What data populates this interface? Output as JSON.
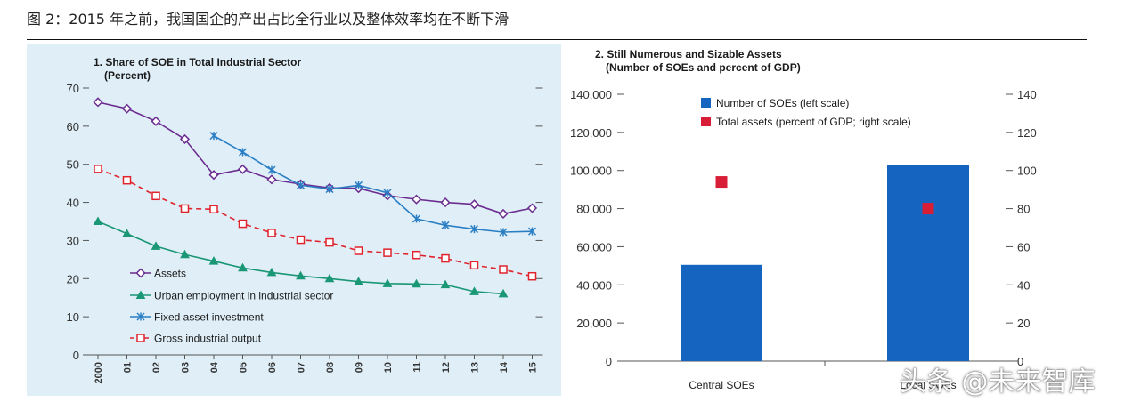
{
  "figure_title": "图 2：2015 年之前，我国国企的产出占比全行业以及整体效率均在不断下滑",
  "watermark": "头条 @未来智库",
  "chart_data": [
    {
      "type": "line",
      "title": "1. Share of SOE in Total Industrial Sector",
      "subtitle": "(Percent)",
      "ylim": [
        0,
        70
      ],
      "yticks": [
        0,
        10,
        20,
        30,
        40,
        50,
        60,
        70
      ],
      "x_labels": [
        "2000",
        "01",
        "02",
        "03",
        "04",
        "05",
        "06",
        "07",
        "08",
        "09",
        "10",
        "11",
        "12",
        "13",
        "14",
        "15"
      ],
      "series": [
        {
          "name": "Assets",
          "color": "#6b2c8f",
          "marker": "diamond",
          "dashed": false,
          "values": [
            66.3,
            64.6,
            61.3,
            56.6,
            47.2,
            48.7,
            46.0,
            44.8,
            43.8,
            43.7,
            41.8,
            40.8,
            40.0,
            39.5,
            37.0,
            38.5
          ]
        },
        {
          "name": "Urban employment in industrial sector",
          "color": "#1a9775",
          "marker": "triangle",
          "dashed": false,
          "values": [
            35.0,
            31.8,
            28.5,
            26.3,
            24.6,
            22.8,
            21.6,
            20.7,
            20.0,
            19.2,
            18.7,
            18.6,
            18.4,
            16.6,
            16.0,
            null
          ]
        },
        {
          "name": "Fixed asset investment",
          "color": "#2a7fc4",
          "marker": "x",
          "dashed": false,
          "values": [
            null,
            null,
            null,
            null,
            57.5,
            53.2,
            48.5,
            44.5,
            43.5,
            44.5,
            42.5,
            35.7,
            34.0,
            33.0,
            32.2,
            32.4
          ]
        },
        {
          "name": "Gross industrial output",
          "color": "#e0242e",
          "marker": "square",
          "dashed": true,
          "values": [
            48.8,
            45.8,
            41.7,
            38.4,
            38.2,
            34.4,
            32.0,
            30.2,
            29.5,
            27.3,
            26.8,
            26.2,
            25.3,
            23.5,
            22.4,
            20.6
          ]
        }
      ]
    },
    {
      "type": "bar",
      "title": "2. Still Numerous and Sizable Assets",
      "subtitle": "(Number of SOEs and percent of GDP)",
      "categories": [
        "Central SOEs",
        "Local SOEs"
      ],
      "ylim_left": [
        0,
        140000
      ],
      "yticks_left_labels": [
        "0",
        "20,000",
        "40,000",
        "60,000",
        "80,000",
        "100,000",
        "120,000",
        "140,000"
      ],
      "ylim_right": [
        0,
        140
      ],
      "yticks_right_labels": [
        "0",
        "20",
        "40",
        "60",
        "80",
        "100",
        "120",
        "140"
      ],
      "series": [
        {
          "name": "Number of SOEs (left scale)",
          "color": "#1565c0",
          "kind": "bar",
          "values": [
            50500,
            102800
          ]
        },
        {
          "name": "Total assets (percent of GDP; right scale)",
          "color": "#d81e36",
          "kind": "marker",
          "values": [
            94,
            80
          ]
        }
      ]
    }
  ]
}
